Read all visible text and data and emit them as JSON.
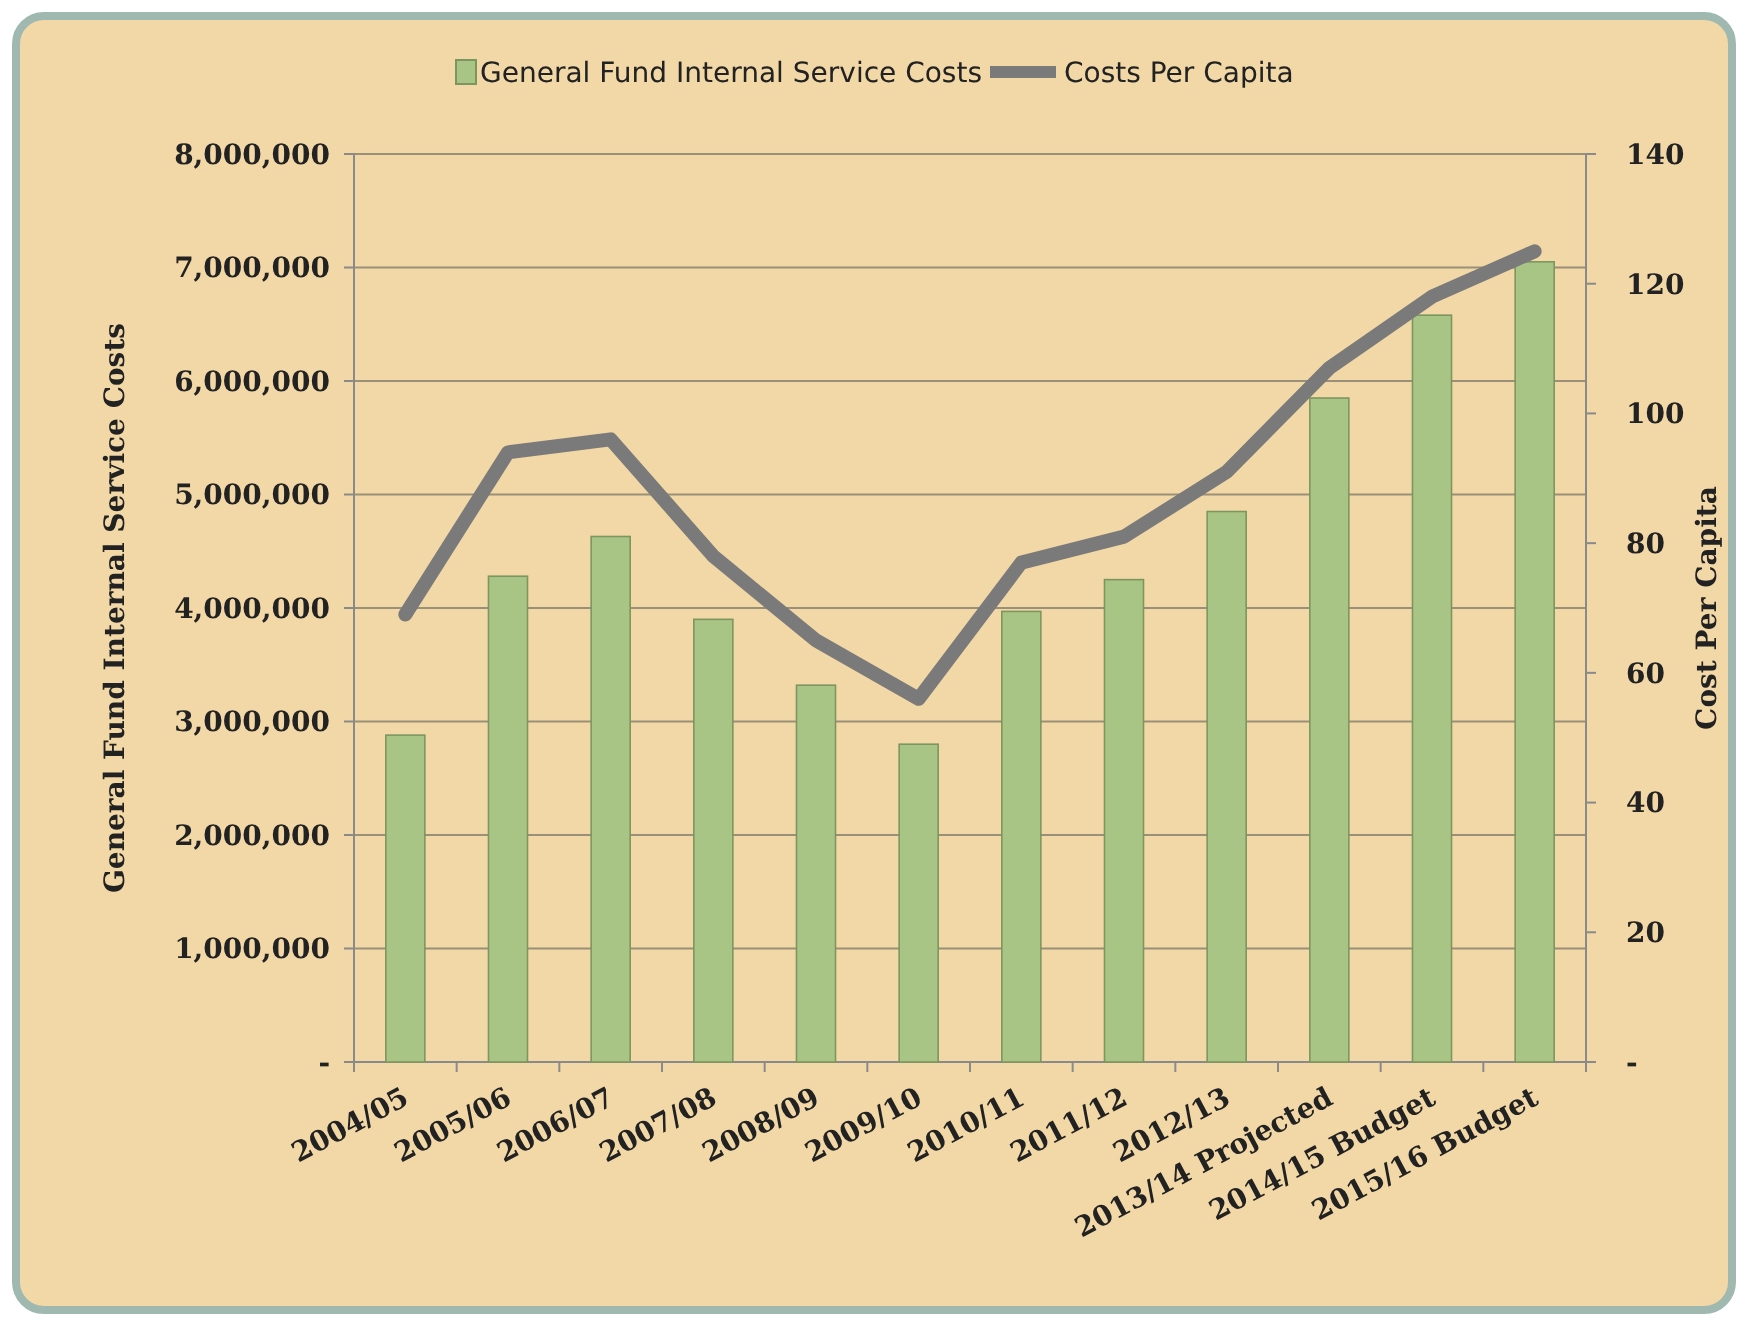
{
  "chart_data": {
    "type": "bar",
    "ylabel": "General Fund Internal Service Costs",
    "y2label": "Cost Per Capita",
    "categories": [
      "2004/05",
      "2005/06",
      "2006/07",
      "2007/08",
      "2008/09",
      "2009/10",
      "2010/11",
      "2011/12",
      "2012/13",
      "2013/14 Projected",
      "2014/15 Budget",
      "2015/16 Budget"
    ],
    "series": [
      {
        "name": "General Fund Internal Service Costs",
        "color": "#a9c585",
        "values": [
          2880000,
          4280000,
          4630000,
          3900000,
          3320000,
          2800000,
          3970000,
          4250000,
          4850000,
          5850000,
          6580000,
          7050000
        ]
      },
      {
        "name": "Costs Per Capita",
        "type": "line",
        "axis": "y2",
        "color": "#7a7a7a",
        "values": [
          69,
          94,
          96,
          78,
          65,
          56,
          77,
          81,
          91,
          107,
          118,
          125
        ]
      }
    ],
    "ylim": [
      0,
      8000000
    ],
    "yticks": [
      {
        "value": 0,
        "label": "-"
      },
      {
        "value": 1000000,
        "label": "1,000,000"
      },
      {
        "value": 2000000,
        "label": "2,000,000"
      },
      {
        "value": 3000000,
        "label": "3,000,000"
      },
      {
        "value": 4000000,
        "label": "4,000,000"
      },
      {
        "value": 5000000,
        "label": "5,000,000"
      },
      {
        "value": 6000000,
        "label": "6,000,000"
      },
      {
        "value": 7000000,
        "label": "7,000,000"
      },
      {
        "value": 8000000,
        "label": "8,000,000"
      }
    ],
    "y2lim": [
      0,
      140
    ],
    "y2ticks": [
      {
        "value": 0,
        "label": "-"
      },
      20,
      40,
      60,
      80,
      100,
      120,
      140
    ],
    "grid": "y",
    "legend": "top",
    "marker": "none"
  }
}
